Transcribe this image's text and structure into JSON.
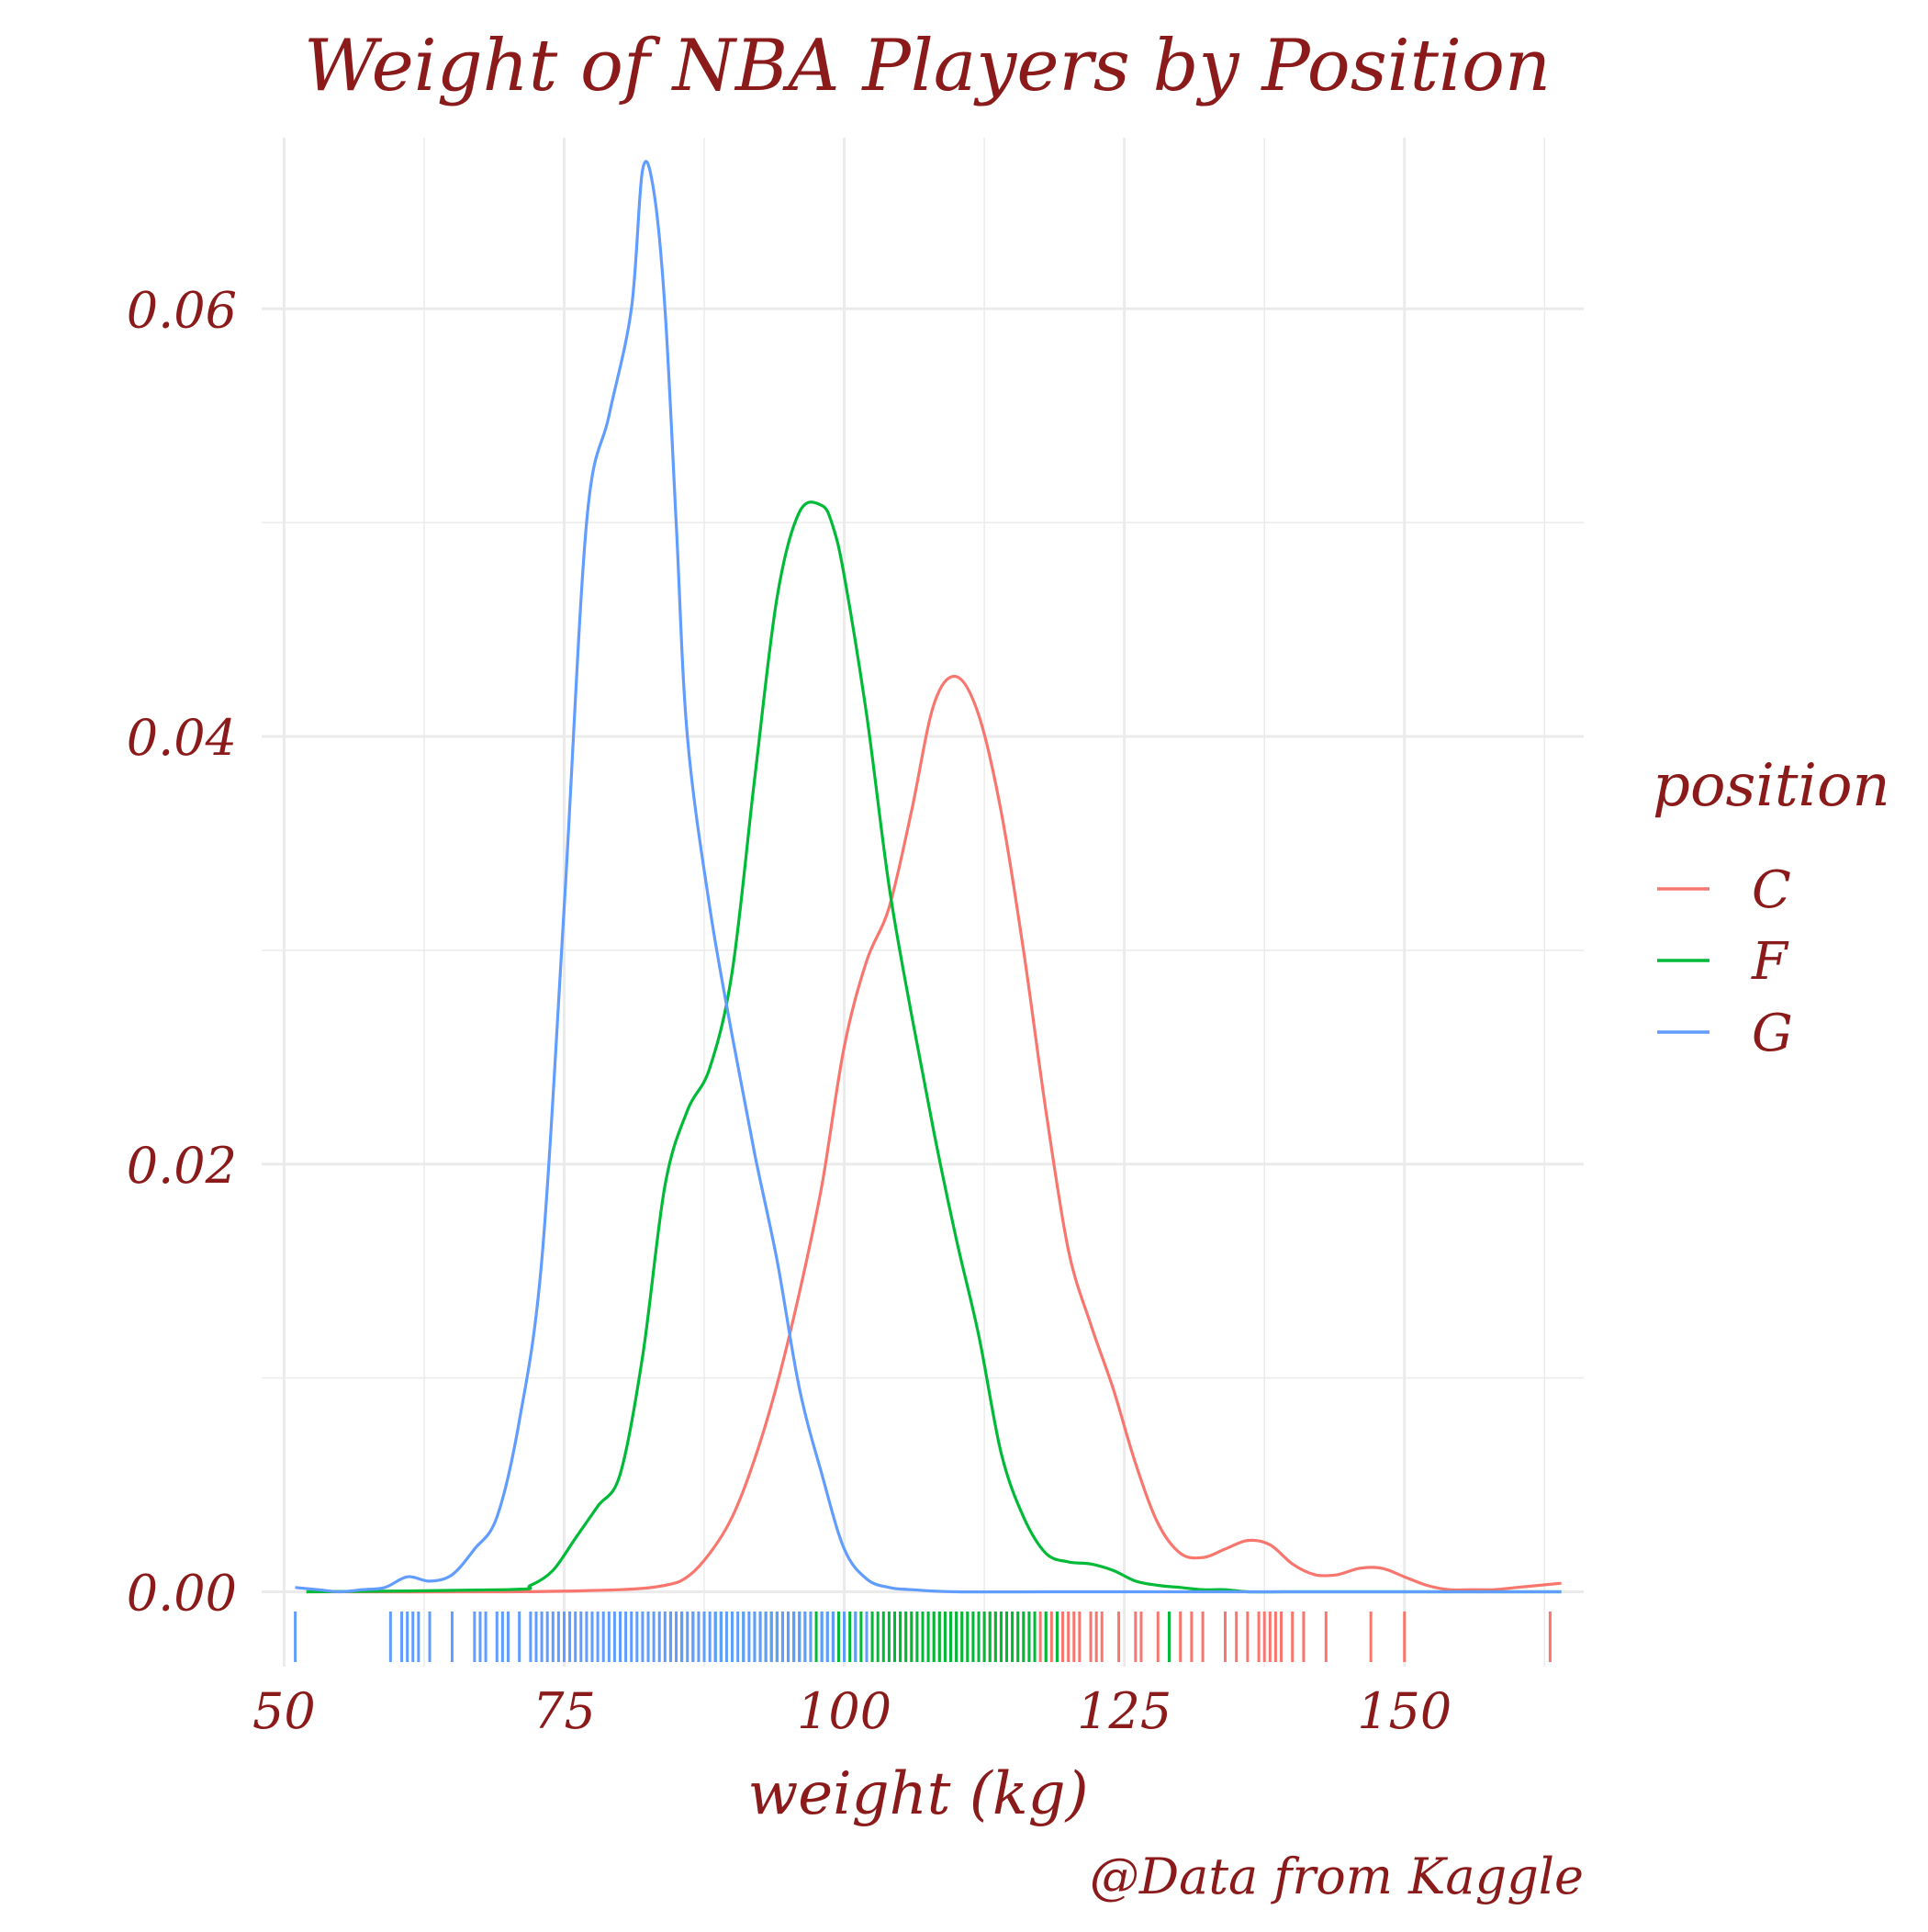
{
  "chart_data": {
    "type": "line",
    "title": "Weight of NBA Players by Position",
    "xlabel": "weight (kg)",
    "ylabel": "",
    "caption": "@Data from Kaggle",
    "xlim": [
      48,
      166
    ],
    "ylim": [
      -0.0035,
      0.068
    ],
    "x_ticks": [
      50,
      75,
      100,
      125,
      150
    ],
    "x_tick_labels": [
      "50",
      "75",
      "100",
      "125",
      "150"
    ],
    "y_ticks": [
      0,
      0.02,
      0.04,
      0.06
    ],
    "y_tick_labels": [
      "0.00",
      "0.02",
      "0.04",
      "0.06"
    ],
    "grid": true,
    "legend": {
      "title": "position",
      "placement": "right"
    },
    "text_color": "#8b1a1a",
    "grid_color": "#ebebeb",
    "series": [
      {
        "name": "C",
        "color": "#f8766d",
        "x": [
          52,
          70,
          80,
          84,
          86,
          88,
          90,
          92,
          94,
          96,
          98,
          100,
          102,
          104,
          106,
          108,
          110,
          112,
          114,
          116,
          118,
          120,
          122,
          124,
          126,
          128,
          130,
          132,
          134,
          136,
          138,
          140,
          142,
          144,
          146,
          148,
          150,
          152,
          154,
          156,
          158,
          160,
          162,
          164
        ],
        "y": [
          0,
          0,
          0.0001,
          0.0003,
          0.0007,
          0.0018,
          0.0035,
          0.0062,
          0.0097,
          0.014,
          0.019,
          0.0255,
          0.0295,
          0.032,
          0.0365,
          0.0415,
          0.0428,
          0.041,
          0.0365,
          0.03,
          0.0225,
          0.016,
          0.0125,
          0.0095,
          0.006,
          0.0032,
          0.0018,
          0.0016,
          0.002,
          0.0024,
          0.0022,
          0.0013,
          0.0008,
          0.0008,
          0.0011,
          0.0011,
          0.0007,
          0.0003,
          0.0001,
          0.0001,
          0.0001,
          0.0002,
          0.0003,
          0.0004
        ]
      },
      {
        "name": "F",
        "color": "#00ba38",
        "x": [
          52,
          70,
          72,
          74,
          76,
          78,
          80,
          82,
          84,
          86,
          88,
          90,
          92,
          94,
          96,
          98,
          99,
          100,
          102,
          104,
          106,
          108,
          110,
          112,
          114,
          116,
          118,
          120,
          122,
          124,
          126,
          128,
          130,
          132,
          134,
          136,
          140,
          150,
          164
        ],
        "y": [
          0,
          0.0001,
          0.0003,
          0.001,
          0.0025,
          0.004,
          0.0055,
          0.011,
          0.019,
          0.0225,
          0.0245,
          0.029,
          0.038,
          0.0465,
          0.0505,
          0.0508,
          0.0498,
          0.0475,
          0.041,
          0.033,
          0.027,
          0.0215,
          0.0165,
          0.012,
          0.0065,
          0.0035,
          0.0018,
          0.0014,
          0.0013,
          0.001,
          0.0005,
          0.0003,
          0.0002,
          0.0001,
          0.0001,
          0,
          0,
          0,
          0
        ]
      },
      {
        "name": "G",
        "color": "#619cff",
        "x": [
          51,
          53,
          55,
          57,
          59,
          61,
          63,
          65,
          67,
          69,
          71,
          73,
          75,
          77,
          79,
          81,
          82,
          83,
          84,
          85,
          86,
          88,
          90,
          92,
          94,
          96,
          98,
          100,
          102,
          104,
          106,
          110,
          120,
          140,
          164
        ],
        "y": [
          0.0002,
          0.0001,
          0,
          0.0001,
          0.0002,
          0.0007,
          0.0005,
          0.0008,
          0.002,
          0.0035,
          0.008,
          0.0155,
          0.032,
          0.05,
          0.055,
          0.06,
          0.0665,
          0.0655,
          0.06,
          0.05,
          0.04,
          0.032,
          0.026,
          0.0205,
          0.0155,
          0.0095,
          0.0055,
          0.002,
          0.0006,
          0.0002,
          0.0001,
          0,
          0,
          0,
          0
        ]
      }
    ],
    "rug": {
      "C": [
        104.5,
        105,
        105.5,
        106,
        106.5,
        107,
        107.5,
        108,
        108.5,
        109,
        109.5,
        110,
        110.5,
        111,
        111.5,
        112,
        112.5,
        113,
        113.5,
        114,
        114.5,
        115,
        115.5,
        116,
        116.5,
        117,
        117.5,
        118,
        118.5,
        119,
        119.5,
        120,
        120.5,
        121,
        122,
        122.5,
        123,
        124.5,
        126,
        126.5,
        128,
        129,
        130,
        131,
        132,
        134,
        135,
        136,
        137,
        137.5,
        138,
        138.5,
        139,
        140,
        141,
        143,
        147,
        150,
        163
      ],
      "F": [
        84.5,
        85.5,
        86.5,
        87.5,
        88.5,
        89,
        90,
        91,
        92,
        92.5,
        93,
        93.5,
        94,
        94.5,
        95,
        95.5,
        96,
        96.5,
        97,
        97.5,
        98,
        98.5,
        99,
        99.5,
        100,
        100.5,
        101,
        101.5,
        102,
        102.5,
        103,
        103.5,
        104,
        104.5,
        105,
        105.5,
        106,
        106.5,
        107,
        107.5,
        108,
        108.5,
        109,
        109.5,
        110,
        110.5,
        111,
        111.5,
        112,
        112.5,
        113,
        113.5,
        114,
        114.5,
        115,
        115.5,
        116,
        116.5,
        117,
        118,
        119,
        129
      ],
      "G": [
        51,
        59.5,
        60.5,
        61,
        61.5,
        62,
        63,
        65,
        67,
        67.5,
        68,
        69,
        69.5,
        70,
        71,
        72,
        72.5,
        73,
        73.5,
        74,
        74.5,
        75,
        75.5,
        76,
        76.5,
        77,
        77.5,
        78,
        78.5,
        79,
        79.5,
        80,
        80.5,
        81,
        81.5,
        82,
        82.5,
        83,
        83.5,
        84,
        84.5,
        85,
        85.5,
        86,
        86.5,
        87,
        87.5,
        88,
        88.5,
        89,
        89.5,
        90,
        90.5,
        91,
        91.5,
        92,
        92.5,
        93,
        93.5,
        94,
        94.5,
        95,
        95.5,
        96,
        96.5,
        97,
        98,
        98.5,
        99,
        100,
        101,
        102
      ]
    }
  }
}
